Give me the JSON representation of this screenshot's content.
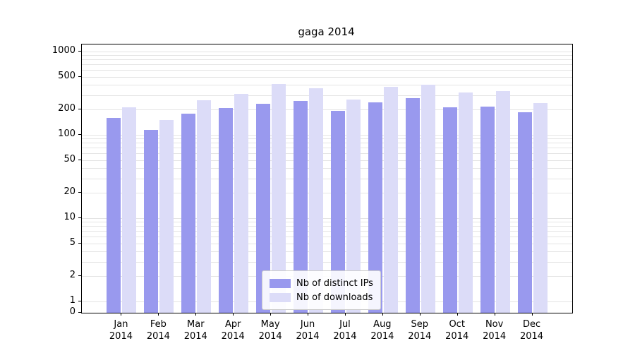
{
  "chart_data": {
    "type": "bar",
    "title": "gaga 2014",
    "yscale": "log",
    "grid": true,
    "legend_position": "lower center",
    "yticks": [
      0,
      1,
      2,
      5,
      10,
      20,
      50,
      100,
      200,
      500,
      1000
    ],
    "ylim": [
      0,
      1300
    ],
    "categories": [
      "Jan 2014",
      "Feb 2014",
      "Mar 2014",
      "Apr 2014",
      "May 2014",
      "Jun 2014",
      "Jul 2014",
      "Aug 2014",
      "Sep 2014",
      "Oct 2014",
      "Nov 2014",
      "Dec 2014"
    ],
    "series": [
      {
        "name": "Nb of distinct IPs",
        "color": "#9999ee",
        "values": [
          160,
          115,
          180,
          210,
          235,
          255,
          195,
          245,
          275,
          215,
          220,
          185
        ]
      },
      {
        "name": "Nb of downloads",
        "color": "#dcdcf8",
        "values": [
          215,
          150,
          260,
          310,
          410,
          360,
          265,
          375,
          400,
          320,
          335,
          240
        ]
      }
    ]
  }
}
